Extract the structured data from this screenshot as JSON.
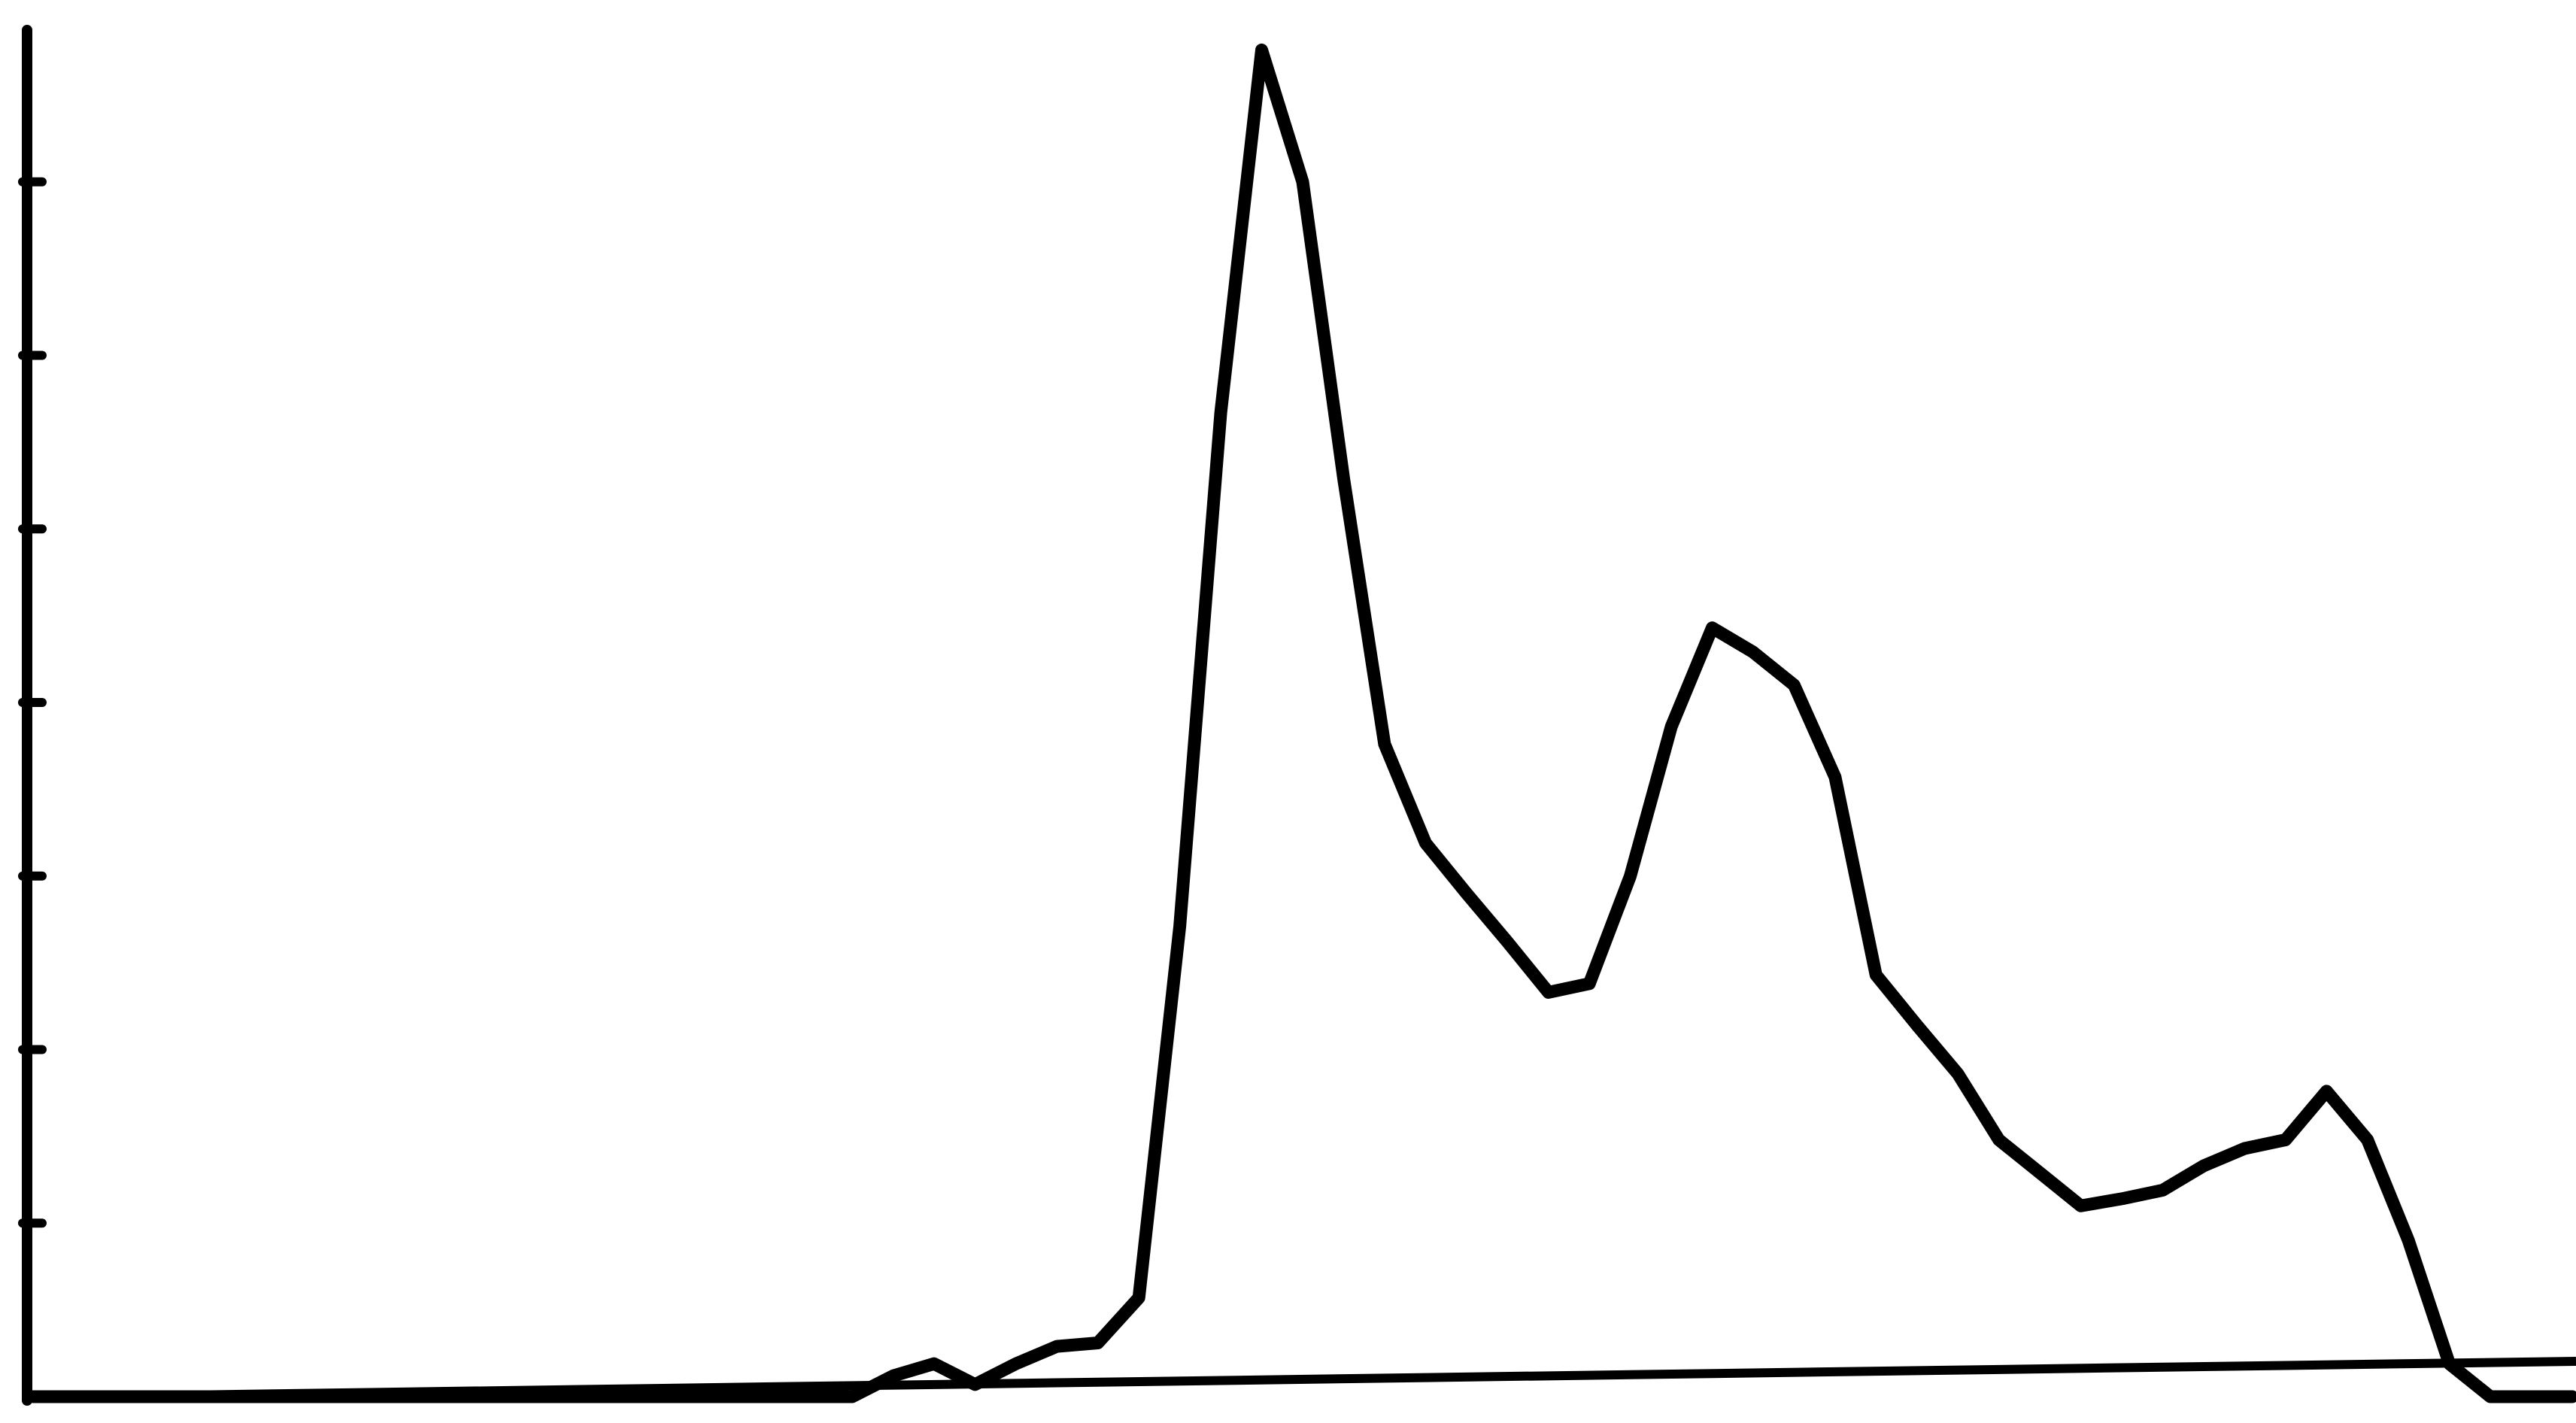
{
  "chart_data": {
    "type": "line",
    "categories": [
      null,
      null,
      null,
      null,
      null,
      null,
      null,
      null,
      null,
      null,
      null,
      null,
      null,
      null,
      null,
      null,
      null,
      null,
      null,
      null,
      null,
      null,
      null,
      null,
      null,
      null,
      null,
      null,
      null,
      null,
      null,
      null,
      null,
      null,
      null,
      null,
      null,
      null,
      null,
      null,
      null,
      null,
      null,
      null,
      null,
      null,
      null,
      null,
      null,
      null,
      null,
      null,
      null,
      null,
      null,
      null,
      null,
      null,
      null,
      null,
      null,
      null,
      null
    ],
    "values": [
      0,
      0,
      0,
      0,
      0,
      0,
      0,
      0,
      0,
      0,
      0,
      0,
      0,
      0,
      0,
      0,
      0,
      0,
      0,
      0,
      0,
      0.12,
      0.19,
      0.07,
      0.19,
      0.29,
      0.31,
      0.57,
      2.71,
      5.67,
      7.76,
      7.0,
      5.29,
      3.76,
      3.19,
      2.9,
      2.62,
      2.33,
      2.38,
      3.0,
      3.86,
      4.43,
      4.29,
      4.1,
      3.57,
      2.43,
      2.14,
      1.86,
      1.48,
      1.29,
      1.1,
      1.14,
      1.19,
      1.33,
      1.43,
      1.48,
      1.76,
      1.48,
      0.9,
      0.19,
      0,
      0,
      0
    ],
    "color": "#000000",
    "ylim": [
      0,
      8
    ],
    "yticks": [
      1,
      2,
      3,
      4,
      5,
      6,
      7
    ],
    "grid": false
  }
}
